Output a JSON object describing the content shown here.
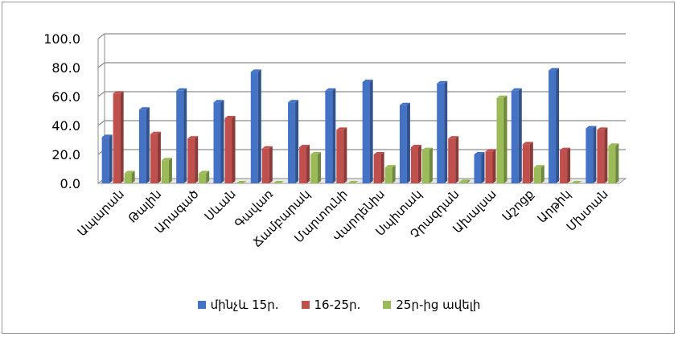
{
  "chart_data": {
    "type": "bar",
    "categories": [
      "Ապարան",
      "Թալին",
      "Արագած",
      "Սևան",
      "Գավառ",
      "Ճամբարակ",
      "Մարտունի",
      "Վարդենիս",
      "Սպիտակ",
      "Չրազդան",
      "Ախալսա",
      "Աշոցք",
      "Արթիկ",
      "Մխտան"
    ],
    "series": [
      {
        "name": "մինչև 15ր.",
        "color": "#4472c4",
        "values": [
          32,
          51,
          64,
          56,
          77,
          56,
          64,
          70,
          54,
          69,
          20,
          64,
          78,
          38
        ]
      },
      {
        "name": "16-25ր.",
        "color": "#c0504d",
        "values": [
          62,
          34,
          31,
          45,
          24,
          25,
          37,
          20,
          25,
          31,
          22,
          27,
          23,
          37
        ]
      },
      {
        "name": "25ր-ից ավելի",
        "color": "#9bbb59",
        "values": [
          7,
          16,
          7,
          0,
          0,
          20,
          0,
          11,
          23,
          1,
          59,
          11,
          0,
          26
        ]
      }
    ],
    "yticks": [
      "0.0",
      "20.0",
      "40.0",
      "60.0",
      "80.0",
      "100.0"
    ],
    "ylim": [
      0,
      100
    ],
    "grid": true,
    "legend": "bottom"
  }
}
